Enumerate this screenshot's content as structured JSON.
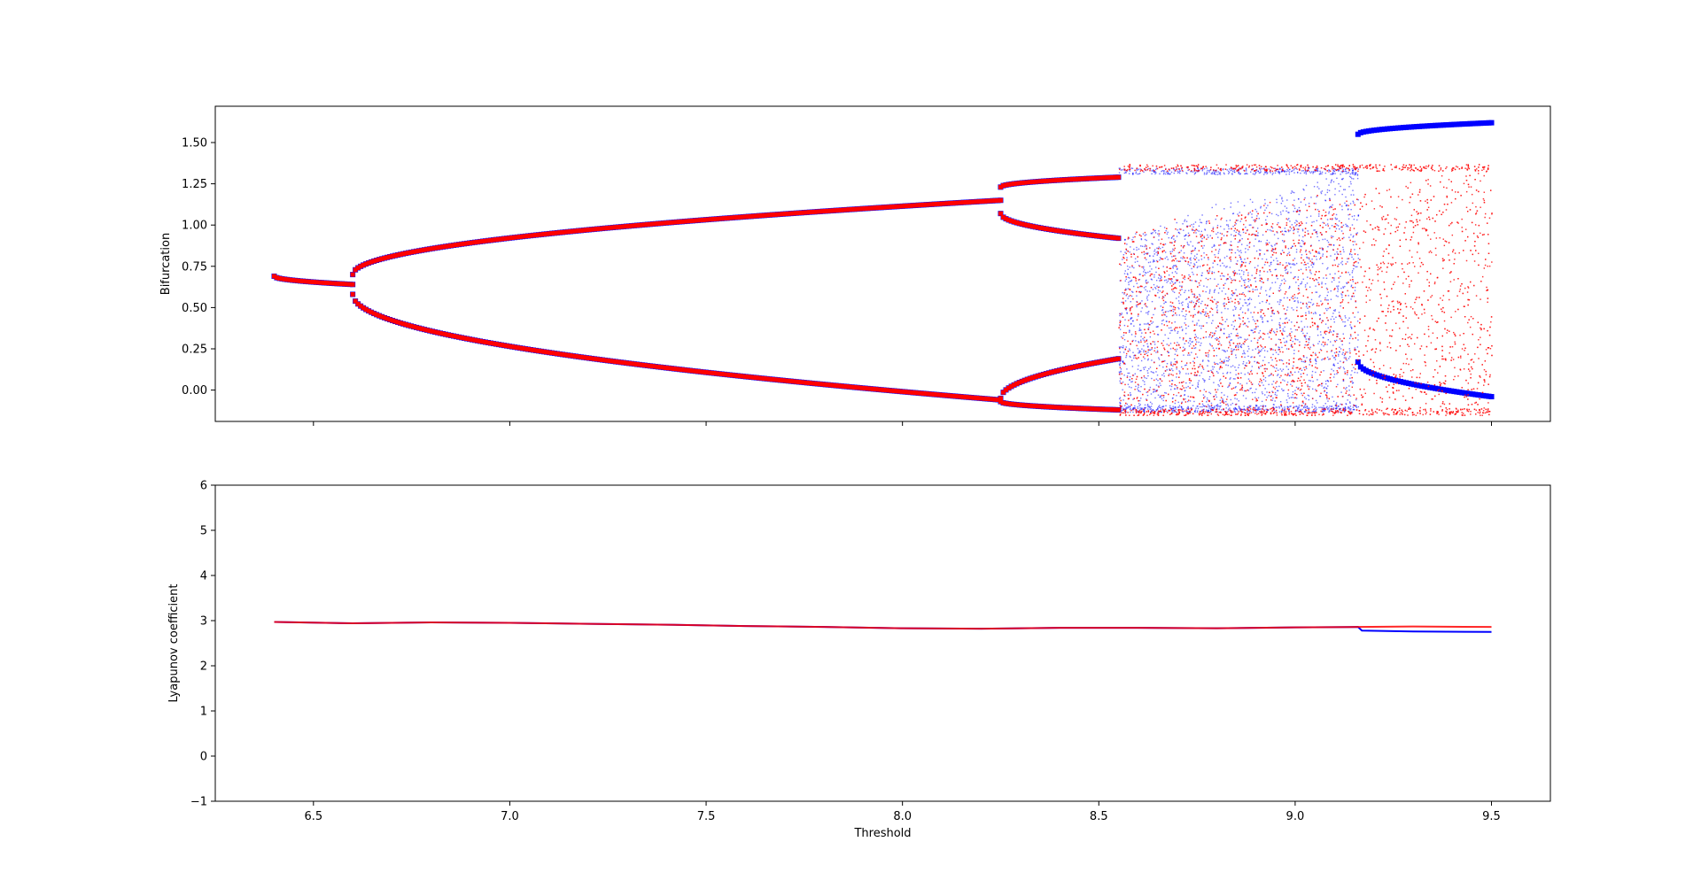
{
  "chart_data": [
    {
      "type": "scatter",
      "title": "",
      "xlabel": "",
      "ylabel": "Bifurcation",
      "xlim": [
        6.25,
        9.65
      ],
      "ylim": [
        -0.19,
        1.72
      ],
      "x_ticks": [
        6.5,
        7.0,
        7.5,
        8.0,
        8.5,
        9.0,
        9.5
      ],
      "x_tick_labels_shown": false,
      "y_ticks": [
        0.0,
        0.25,
        0.5,
        0.75,
        1.0,
        1.25,
        1.5
      ],
      "y_tick_labels": [
        "0.00",
        "0.25",
        "0.50",
        "0.75",
        "1.00",
        "1.25",
        "1.50"
      ],
      "grid": false,
      "legend": "none",
      "series": [
        {
          "color": "#0000ff",
          "marker": "dot",
          "regimes": [
            {
              "x_range": [
                6.4,
                6.6
              ],
              "kind": "fixed",
              "y": [
                [
                  0.69,
                  0.64
                ]
              ]
            },
            {
              "x_range": [
                6.6,
                8.25
              ],
              "kind": "period-2",
              "y": [
                [
                  0.7,
                  1.15
                ],
                [
                  0.58,
                  -0.06
                ]
              ]
            },
            {
              "x_range": [
                8.25,
                8.55
              ],
              "kind": "period-4",
              "y": [
                [
                  1.23,
                  1.29
                ],
                [
                  1.07,
                  0.92
                ],
                [
                  -0.05,
                  0.19
                ],
                [
                  -0.07,
                  -0.12
                ]
              ]
            },
            {
              "x_range": [
                8.55,
                9.16
              ],
              "kind": "chaotic",
              "y_envelope": [
                -0.13,
                1.35
              ]
            },
            {
              "x_range": [
                9.16,
                9.5
              ],
              "kind": "period-2",
              "y": [
                [
                  1.55,
                  1.62
                ],
                [
                  0.17,
                  -0.04
                ]
              ]
            }
          ]
        },
        {
          "color": "#ff0000",
          "marker": "dot",
          "regimes": [
            {
              "x_range": [
                6.4,
                6.6
              ],
              "kind": "fixed",
              "y": [
                [
                  0.69,
                  0.64
                ]
              ]
            },
            {
              "x_range": [
                6.6,
                8.25
              ],
              "kind": "period-2",
              "y": [
                [
                  0.7,
                  1.15
                ],
                [
                  0.58,
                  -0.06
                ]
              ]
            },
            {
              "x_range": [
                8.25,
                8.55
              ],
              "kind": "period-4",
              "y": [
                [
                  1.23,
                  1.29
                ],
                [
                  1.07,
                  0.92
                ],
                [
                  -0.05,
                  0.19
                ],
                [
                  -0.07,
                  -0.12
                ]
              ]
            },
            {
              "x_range": [
                8.55,
                9.5
              ],
              "kind": "chaotic",
              "y_envelope": [
                -0.15,
                1.37
              ]
            }
          ]
        }
      ]
    },
    {
      "type": "line",
      "title": "",
      "xlabel": "Threshold",
      "ylabel": "Lyapunov coefficient",
      "xlim": [
        6.25,
        9.65
      ],
      "ylim": [
        -1,
        6
      ],
      "x_ticks": [
        6.5,
        7.0,
        7.5,
        8.0,
        8.5,
        9.0,
        9.5
      ],
      "x_tick_labels": [
        "6.5",
        "7.0",
        "7.5",
        "8.0",
        "8.5",
        "9.0",
        "9.5"
      ],
      "y_ticks": [
        -1,
        0,
        1,
        2,
        3,
        4,
        5,
        6
      ],
      "y_tick_labels": [
        "−1",
        "0",
        "1",
        "2",
        "3",
        "4",
        "5",
        "6"
      ],
      "grid": false,
      "legend": "none",
      "series": [
        {
          "color": "#ff0000",
          "x": [
            6.4,
            6.6,
            6.8,
            7.0,
            7.2,
            7.4,
            7.6,
            7.8,
            8.0,
            8.2,
            8.4,
            8.6,
            8.8,
            9.0,
            9.16,
            9.3,
            9.5
          ],
          "y": [
            2.97,
            2.94,
            2.96,
            2.95,
            2.93,
            2.91,
            2.88,
            2.86,
            2.83,
            2.82,
            2.84,
            2.84,
            2.83,
            2.85,
            2.86,
            2.87,
            2.86
          ]
        },
        {
          "color": "#0000ff",
          "x": [
            6.4,
            6.6,
            6.8,
            7.0,
            7.2,
            7.4,
            7.6,
            7.8,
            8.0,
            8.2,
            8.4,
            8.6,
            8.8,
            9.0,
            9.16,
            9.17,
            9.3,
            9.5
          ],
          "y": [
            2.97,
            2.94,
            2.96,
            2.95,
            2.93,
            2.91,
            2.88,
            2.86,
            2.83,
            2.82,
            2.84,
            2.84,
            2.83,
            2.85,
            2.86,
            2.78,
            2.76,
            2.75
          ]
        }
      ]
    }
  ]
}
